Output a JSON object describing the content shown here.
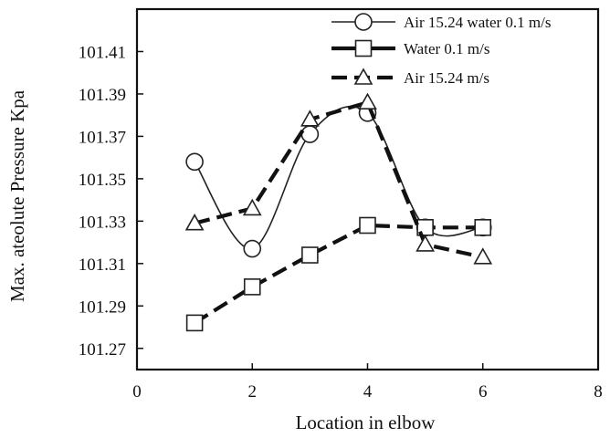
{
  "chart_data": {
    "type": "line",
    "title": "",
    "xlabel": "Location in elbow",
    "ylabel": "Max. ateolute Pressure Kpa",
    "xlim": [
      0,
      8
    ],
    "ylim": [
      101.26,
      101.43
    ],
    "x_ticks": [
      0,
      2,
      4,
      6,
      8
    ],
    "x_tick_labels": [
      "0",
      "2",
      "4",
      "6",
      "8"
    ],
    "y_ticks": [
      101.27,
      101.29,
      101.31,
      101.33,
      101.35,
      101.37,
      101.39,
      101.41
    ],
    "y_tick_labels": [
      "101.27",
      "101.29",
      "101.31",
      "101.33",
      "101.35",
      "101.37",
      "101.39",
      "101.41"
    ],
    "grid": false,
    "legend_position": "top-right",
    "series": [
      {
        "name": "Air 15.24 water 0.1 m/s",
        "style": "thin-solid-smooth",
        "marker": "circle",
        "color": "#222222",
        "x": [
          1,
          2,
          3,
          4,
          5,
          6
        ],
        "values": [
          101.358,
          101.317,
          101.371,
          101.381,
          101.327,
          101.327
        ]
      },
      {
        "name": "Water 0.1 m/s",
        "style": "thick-dashed",
        "marker": "square",
        "color": "#111111",
        "x": [
          1,
          2,
          3,
          4,
          5,
          6
        ],
        "values": [
          101.282,
          101.299,
          101.314,
          101.328,
          101.327,
          101.327
        ]
      },
      {
        "name": "Air 15.24 m/s",
        "style": "thick-dashed",
        "marker": "triangle",
        "color": "#111111",
        "x": [
          1,
          2,
          3,
          4,
          5,
          6
        ],
        "values": [
          101.329,
          101.336,
          101.378,
          101.386,
          101.319,
          101.313
        ]
      }
    ]
  }
}
